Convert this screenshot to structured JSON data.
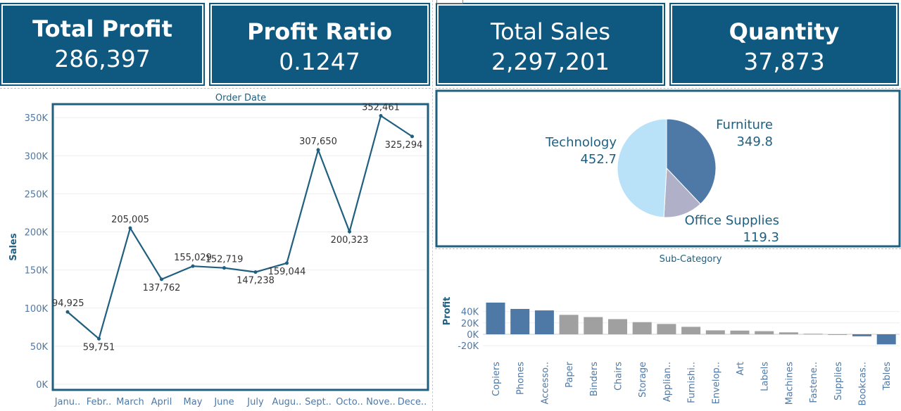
{
  "kpis": [
    {
      "title": "Total Profit",
      "value": "286,397"
    },
    {
      "title": "Profit Ratio",
      "value": "0.1247"
    },
    {
      "title": "Total Sales",
      "value": "2,297,201"
    },
    {
      "title": "Quantity",
      "value": "37,873"
    }
  ],
  "colors": {
    "kpi_bg": "#0f5880",
    "line": "#1f5f7f",
    "accent": "#4e79a7",
    "grey": "#a0a0a0",
    "pie_light": "#b9e2f8",
    "pie_mid": "#b0b0c8"
  },
  "chart_data": [
    {
      "type": "line",
      "title": "Order Date",
      "ylabel": "Sales",
      "categories": [
        "Janu..",
        "Febr..",
        "March",
        "April",
        "May",
        "June",
        "July",
        "Augu..",
        "Sept..",
        "Octo..",
        "Nove..",
        "Dece.."
      ],
      "values": [
        94925,
        59751,
        205005,
        137762,
        155029,
        152719,
        147238,
        159044,
        307650,
        200323,
        352461,
        325294
      ],
      "labels": [
        "94,925",
        "59,751",
        "205,005",
        "137,762",
        "155,029",
        "152,719",
        "147,238",
        "159,044",
        "307,650",
        "200,323",
        "352,461",
        "325,294"
      ],
      "yticks": [
        "0K",
        "50K",
        "100K",
        "150K",
        "200K",
        "250K",
        "300K",
        "350K"
      ],
      "ylim": [
        0,
        370000
      ]
    },
    {
      "type": "pie",
      "slices": [
        {
          "name": "Furniture",
          "value": 349.8,
          "label": "349.8",
          "color": "#4e79a7"
        },
        {
          "name": "Office Supplies",
          "value": 119.3,
          "label": "119.3",
          "color": "#b0b0c8"
        },
        {
          "name": "Technology",
          "value": 452.7,
          "label": "452.7",
          "color": "#b9e2f8"
        }
      ]
    },
    {
      "type": "bar",
      "title": "Sub-Category",
      "ylabel": "Profit",
      "categories": [
        "Copiers",
        "Phones",
        "Accesso..",
        "Paper",
        "Binders",
        "Chairs",
        "Storage",
        "Applian..",
        "Furnishi..",
        "Envelop..",
        "Art",
        "Labels",
        "Machines",
        "Fastene..",
        "Supplies",
        "Bookcas..",
        "Tables"
      ],
      "values": [
        55600,
        44500,
        41900,
        34100,
        30200,
        26600,
        21300,
        18100,
        13100,
        6900,
        6500,
        5500,
        3400,
        950,
        -1200,
        -3500,
        -17700
      ],
      "highlighted": [
        true,
        true,
        true,
        false,
        false,
        false,
        false,
        false,
        false,
        false,
        false,
        false,
        false,
        false,
        false,
        true,
        true
      ],
      "yticks": [
        "-20K",
        "0K",
        "20K",
        "40K"
      ],
      "ylim": [
        -22000,
        60000
      ]
    }
  ]
}
